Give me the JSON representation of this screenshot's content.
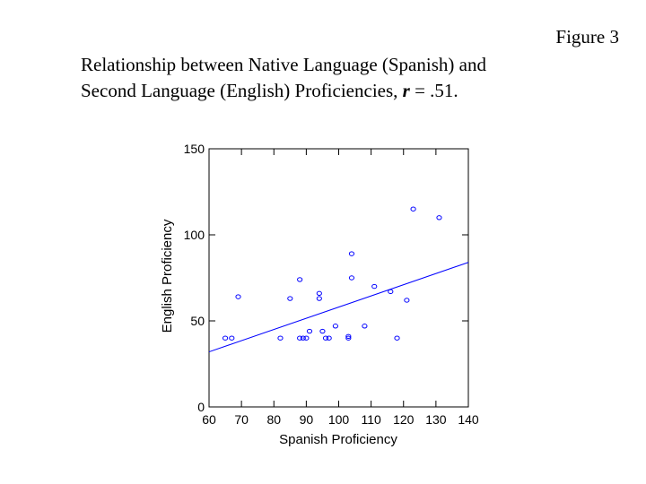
{
  "figure_label": "Figure 3",
  "caption": {
    "line1": "Relationship between Native Language (Spanish) and",
    "line2_prefix": "Second Language (English) Proficiencies, ",
    "r_symbol": "r",
    "r_value": " = .51."
  },
  "chart_data": {
    "type": "scatter",
    "xlabel": "Spanish Proficiency",
    "ylabel": "English Proficiency",
    "xlim": [
      60,
      140
    ],
    "ylim": [
      0,
      150
    ],
    "xticks": [
      60,
      70,
      80,
      90,
      100,
      110,
      120,
      130,
      140
    ],
    "yticks": [
      0,
      50,
      100,
      150
    ],
    "grid": false,
    "marker_color": "#0000ff",
    "line_color": "#0000ff",
    "points": [
      {
        "x": 65,
        "y": 40
      },
      {
        "x": 67,
        "y": 40
      },
      {
        "x": 69,
        "y": 64
      },
      {
        "x": 82,
        "y": 40
      },
      {
        "x": 85,
        "y": 63
      },
      {
        "x": 88,
        "y": 74
      },
      {
        "x": 88,
        "y": 40
      },
      {
        "x": 89,
        "y": 40
      },
      {
        "x": 90,
        "y": 40
      },
      {
        "x": 91,
        "y": 44
      },
      {
        "x": 94,
        "y": 66
      },
      {
        "x": 94,
        "y": 63
      },
      {
        "x": 95,
        "y": 44
      },
      {
        "x": 96,
        "y": 40
      },
      {
        "x": 97,
        "y": 40
      },
      {
        "x": 99,
        "y": 47
      },
      {
        "x": 103,
        "y": 41
      },
      {
        "x": 103,
        "y": 40
      },
      {
        "x": 104,
        "y": 89
      },
      {
        "x": 104,
        "y": 75
      },
      {
        "x": 108,
        "y": 47
      },
      {
        "x": 111,
        "y": 70
      },
      {
        "x": 116,
        "y": 67
      },
      {
        "x": 118,
        "y": 40
      },
      {
        "x": 121,
        "y": 62
      },
      {
        "x": 123,
        "y": 115
      },
      {
        "x": 131,
        "y": 110
      }
    ],
    "fit_line": {
      "x": [
        60,
        140
      ],
      "y": [
        32,
        84
      ]
    }
  }
}
